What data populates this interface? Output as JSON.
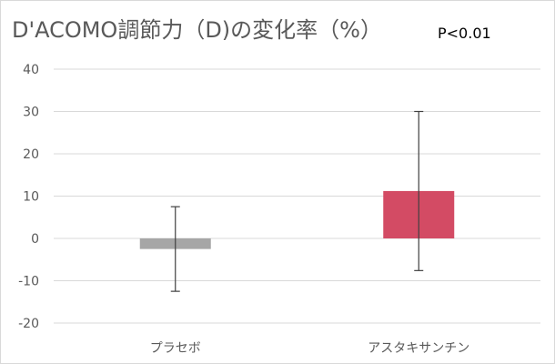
{
  "chart_data": {
    "type": "bar",
    "title": "D'ACOMO調節力（D)の変化率（%）",
    "annotation": "P<0.01",
    "categories": [
      "プラセボ",
      "アスタキサンチン"
    ],
    "values": [
      -2.5,
      11.2
    ],
    "error_low": [
      -12.5,
      -7.6
    ],
    "error_high": [
      7.5,
      30.0
    ],
    "bar_colors": [
      "#a6a6a6",
      "#d34b64"
    ],
    "ylim": [
      -20,
      40
    ],
    "yticks": [
      -20,
      -10,
      0,
      10,
      20,
      30,
      40
    ],
    "grid": true,
    "legend": "none"
  }
}
